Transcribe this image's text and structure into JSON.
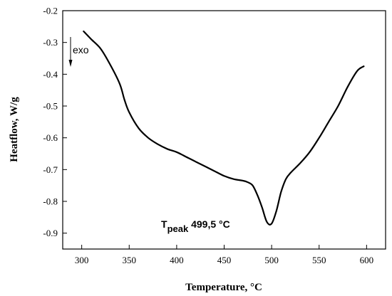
{
  "chart_data": {
    "type": "line",
    "title": "",
    "xlabel": "Temperature, °C",
    "ylabel": "Heatflow, W/g",
    "xlim": [
      280,
      620
    ],
    "ylim": [
      -0.95,
      -0.2
    ],
    "x_ticks": [
      300,
      350,
      400,
      450,
      500,
      550,
      600
    ],
    "y_ticks": [
      -0.9,
      -0.8,
      -0.7,
      -0.6,
      -0.5,
      -0.4,
      -0.3,
      -0.2
    ],
    "x_tick_labels": [
      "300",
      "350",
      "400",
      "450",
      "500",
      "550",
      "600"
    ],
    "y_tick_labels": [
      "-0.9",
      "-0.8",
      "-0.7",
      "-0.6",
      "-0.5",
      "-0.4",
      "-0.3",
      "-0.2"
    ],
    "grid": false,
    "legend": "none",
    "line_color": "#000000",
    "series": [
      {
        "x": [
          302,
          310,
          320,
          330,
          340,
          345,
          350,
          360,
          370,
          380,
          390,
          400,
          410,
          420,
          430,
          440,
          450,
          460,
          470,
          475,
          480,
          485,
          490,
          495,
          500,
          505,
          510,
          515,
          520,
          530,
          540,
          550,
          560,
          570,
          580,
          590,
          597
        ],
        "y": [
          -0.265,
          -0.29,
          -0.32,
          -0.37,
          -0.43,
          -0.48,
          -0.52,
          -0.57,
          -0.6,
          -0.62,
          -0.635,
          -0.645,
          -0.66,
          -0.675,
          -0.69,
          -0.705,
          -0.72,
          -0.73,
          -0.735,
          -0.74,
          -0.75,
          -0.78,
          -0.82,
          -0.865,
          -0.87,
          -0.83,
          -0.77,
          -0.73,
          -0.71,
          -0.68,
          -0.645,
          -0.6,
          -0.55,
          -0.5,
          -0.44,
          -0.39,
          -0.375
        ]
      }
    ],
    "annotations": {
      "exo_label": "exo",
      "peak_main": "T",
      "peak_sub": "peak",
      "peak_value": " 499,5 °C"
    }
  }
}
